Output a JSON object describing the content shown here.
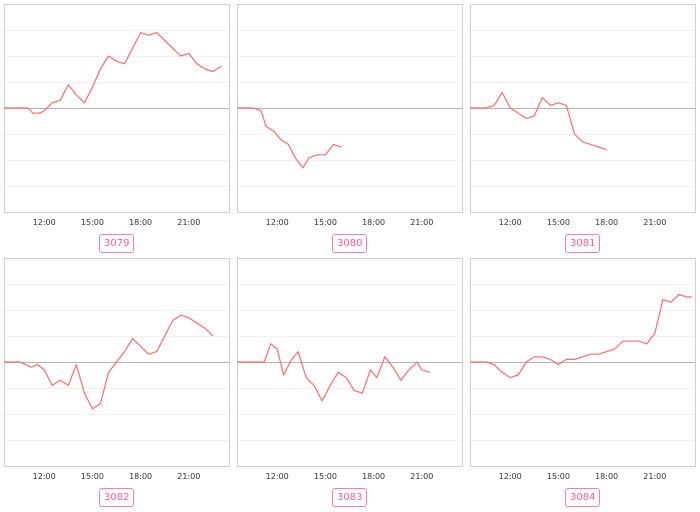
{
  "colors": {
    "line": "#ff6b6b",
    "badge": "#ff5c94"
  },
  "chart_data": [
    {
      "type": "line",
      "label": "3079",
      "xticks": [
        "12:00",
        "15:00",
        "18:00",
        "21:00"
      ],
      "baseline": 0,
      "grid": true,
      "xlim": [
        9.5,
        23.5
      ],
      "ylim": [
        -4,
        4
      ],
      "x": [
        9.5,
        11.0,
        11.3,
        11.7,
        12.0,
        12.5,
        13.0,
        13.5,
        14.0,
        14.5,
        15.0,
        15.5,
        16.0,
        16.5,
        17.0,
        17.5,
        18.0,
        18.5,
        19.0,
        19.5,
        20.0,
        20.5,
        21.0,
        21.5,
        22.0,
        22.5,
        23.0
      ],
      "y": [
        0,
        0,
        -0.2,
        -0.2,
        -0.1,
        0.2,
        0.3,
        0.9,
        0.5,
        0.2,
        0.8,
        1.5,
        2.0,
        1.8,
        1.7,
        2.3,
        2.9,
        2.8,
        2.9,
        2.6,
        2.3,
        2.0,
        2.1,
        1.7,
        1.5,
        1.4,
        1.6
      ]
    },
    {
      "type": "line",
      "label": "3080",
      "xticks": [
        "12:00",
        "15:00",
        "18:00",
        "21:00"
      ],
      "baseline": 0,
      "grid": true,
      "xlim": [
        9.5,
        23.5
      ],
      "ylim": [
        -4,
        4
      ],
      "x": [
        9.5,
        10.5,
        11.0,
        11.3,
        11.8,
        12.2,
        12.7,
        13.1,
        13.6,
        14.0,
        14.5,
        15.0,
        15.5,
        16.0
      ],
      "y": [
        0,
        0,
        -0.1,
        -0.7,
        -0.9,
        -1.2,
        -1.4,
        -1.9,
        -2.3,
        -1.9,
        -1.8,
        -1.8,
        -1.4,
        -1.5
      ]
    },
    {
      "type": "line",
      "label": "3081",
      "xticks": [
        "12:00",
        "15:00",
        "18:00",
        "21:00"
      ],
      "baseline": 0,
      "grid": true,
      "xlim": [
        9.5,
        23.5
      ],
      "ylim": [
        -4,
        4
      ],
      "x": [
        9.5,
        10.5,
        11.0,
        11.5,
        12.0,
        12.5,
        13.0,
        13.5,
        14.0,
        14.5,
        15.0,
        15.5,
        16.0,
        16.5,
        17.0,
        17.5,
        18.0
      ],
      "y": [
        0,
        0,
        0.1,
        0.6,
        0.0,
        -0.2,
        -0.4,
        -0.3,
        0.4,
        0.1,
        0.2,
        0.1,
        -1.0,
        -1.3,
        -1.4,
        -1.5,
        -1.6
      ]
    },
    {
      "type": "line",
      "label": "3082",
      "xticks": [
        "12:00",
        "15:00",
        "18:00",
        "21:00"
      ],
      "baseline": 0,
      "grid": true,
      "xlim": [
        9.5,
        23.5
      ],
      "ylim": [
        -4,
        4
      ],
      "x": [
        9.5,
        10.5,
        11.2,
        11.6,
        12.0,
        12.5,
        13.0,
        13.5,
        14.0,
        14.5,
        15.0,
        15.5,
        16.0,
        16.5,
        17.0,
        17.5,
        18.0,
        18.5,
        19.0,
        19.5,
        20.0,
        20.5,
        21.0,
        21.5,
        22.0,
        22.5
      ],
      "y": [
        0,
        0,
        -0.2,
        -0.1,
        -0.3,
        -0.9,
        -0.7,
        -0.9,
        -0.1,
        -1.2,
        -1.8,
        -1.6,
        -0.4,
        0.0,
        0.4,
        0.9,
        0.6,
        0.3,
        0.4,
        1.0,
        1.6,
        1.8,
        1.7,
        1.5,
        1.3,
        1.0
      ]
    },
    {
      "type": "line",
      "label": "3083",
      "xticks": [
        "12:00",
        "15:00",
        "18:00",
        "21:00"
      ],
      "baseline": 0,
      "grid": true,
      "xlim": [
        9.5,
        23.5
      ],
      "ylim": [
        -4,
        4
      ],
      "x": [
        9.5,
        11.2,
        11.6,
        12.0,
        12.4,
        12.9,
        13.3,
        13.8,
        14.3,
        14.8,
        15.3,
        15.8,
        16.3,
        16.8,
        17.3,
        17.8,
        18.2,
        18.7,
        19.2,
        19.7,
        20.2,
        20.7,
        21.0,
        21.5
      ],
      "y": [
        0,
        0,
        0.7,
        0.5,
        -0.5,
        0.1,
        0.4,
        -0.6,
        -0.9,
        -1.5,
        -0.9,
        -0.4,
        -0.6,
        -1.1,
        -1.2,
        -0.3,
        -0.6,
        0.2,
        -0.2,
        -0.7,
        -0.3,
        0.0,
        -0.3,
        -0.4
      ]
    },
    {
      "type": "line",
      "label": "3084",
      "xticks": [
        "12:00",
        "15:00",
        "18:00",
        "21:00"
      ],
      "baseline": 0,
      "grid": true,
      "xlim": [
        9.5,
        23.5
      ],
      "ylim": [
        -4,
        4
      ],
      "x": [
        9.5,
        10.5,
        11.0,
        11.5,
        12.0,
        12.5,
        13.0,
        13.5,
        14.0,
        14.5,
        15.0,
        15.5,
        16.0,
        16.5,
        17.0,
        17.5,
        18.0,
        18.5,
        19.0,
        19.5,
        20.0,
        20.5,
        21.0,
        21.5,
        22.0,
        22.5,
        23.0,
        23.3
      ],
      "y": [
        0,
        0,
        -0.1,
        -0.4,
        -0.6,
        -0.5,
        0.0,
        0.2,
        0.2,
        0.1,
        -0.1,
        0.1,
        0.1,
        0.2,
        0.3,
        0.3,
        0.4,
        0.5,
        0.8,
        0.8,
        0.8,
        0.7,
        1.1,
        2.4,
        2.3,
        2.6,
        2.5,
        2.5
      ]
    }
  ]
}
